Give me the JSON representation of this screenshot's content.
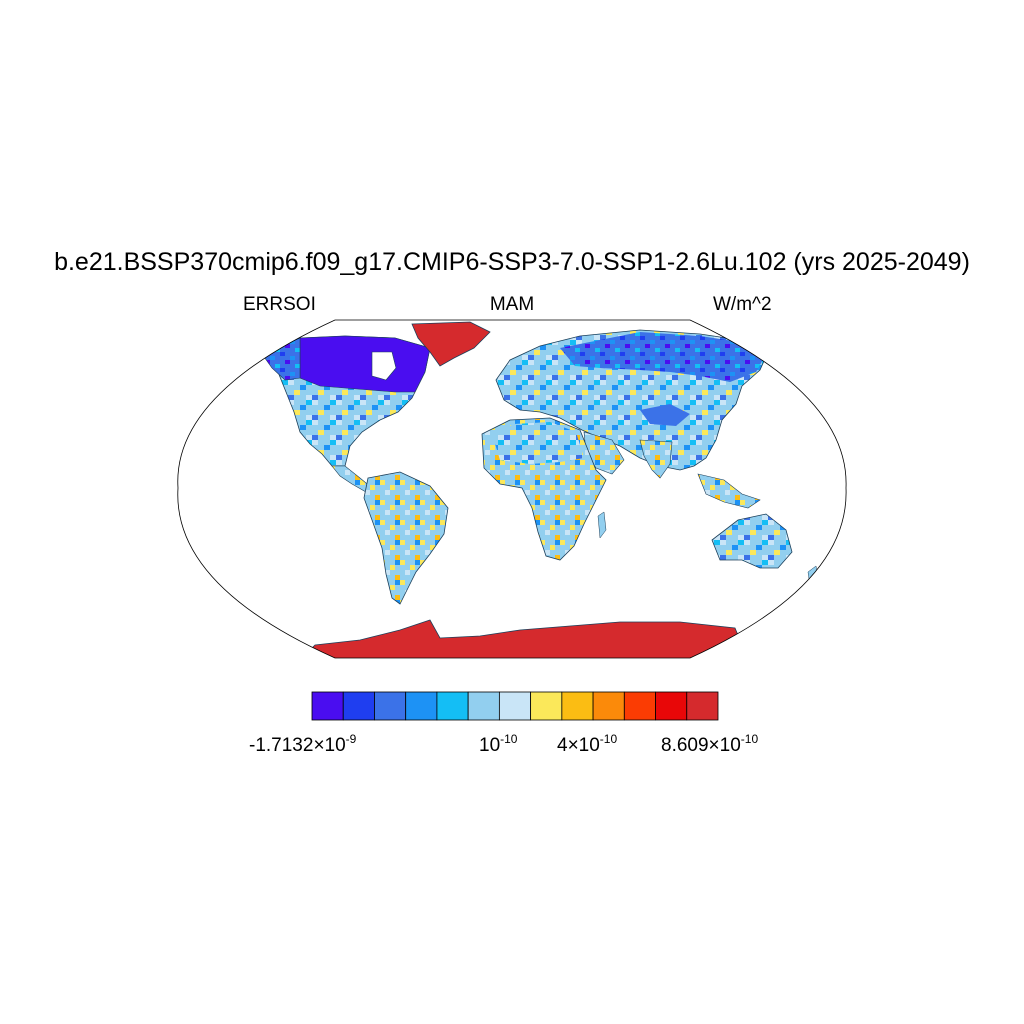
{
  "title": "b.e21.BSSP370cmip6.f09_g17.CMIP6-SSP3-7.0-SSP1-2.6Lu.102 (yrs 2025-2049)",
  "left_label": "ERRSOI",
  "center_label": "MAM",
  "right_label": "W/m^2",
  "colorbar": {
    "colors": [
      "#4a0df0",
      "#1f3ef0",
      "#3b72e8",
      "#1d92f5",
      "#14bef5",
      "#92cfef",
      "#c9e5f7",
      "#fbe85a",
      "#fbbd13",
      "#fb8a0a",
      "#fb3c03",
      "#e80708",
      "#d52a2d"
    ],
    "labels": [
      {
        "mantissa": "-1.7132×10",
        "exponent": "-9"
      },
      {
        "mantissa": "10",
        "exponent": "-10"
      },
      {
        "mantissa": "4×10",
        "exponent": "-10"
      },
      {
        "mantissa": "8.609×10",
        "exponent": "-10"
      }
    ]
  },
  "map": {
    "projection": "robinson",
    "ocean_color": "#ffffff",
    "land_colors": {
      "high_latitude_north_america": "#4a0df0",
      "siberia": "#1f3ef0",
      "greenland": "#d52a2d",
      "antarctica": "#d52a2d",
      "mid_latitude_land": "#92cfef"
    }
  }
}
